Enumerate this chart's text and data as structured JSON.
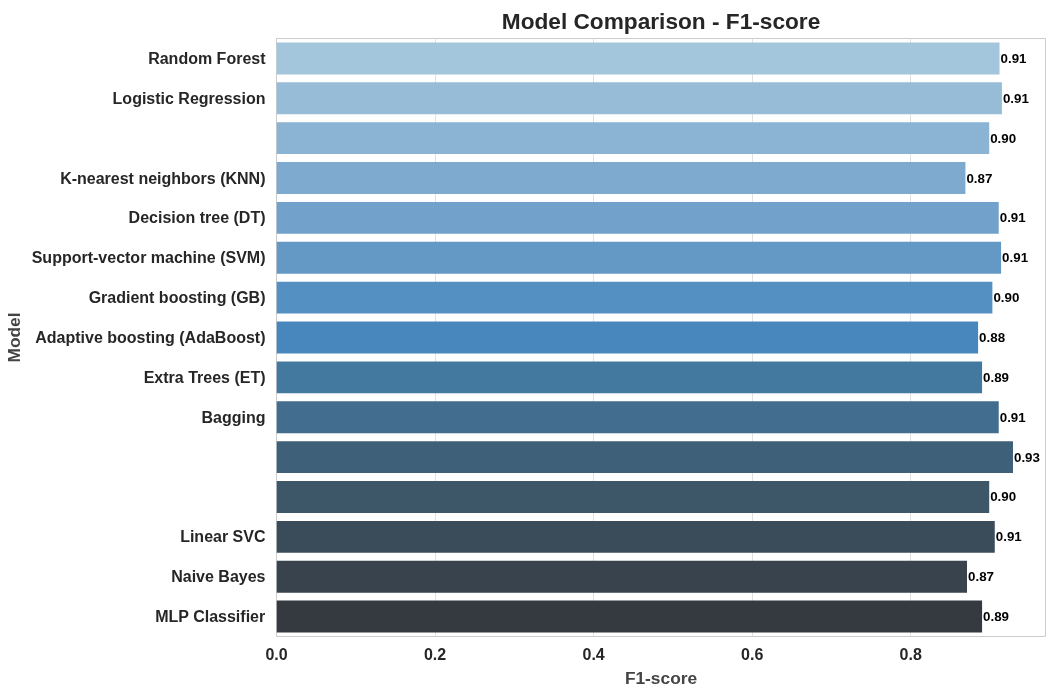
{
  "chart_data": {
    "type": "bar",
    "orientation": "horizontal",
    "title": "Model Comparison - F1-score",
    "xlabel": "F1-score",
    "ylabel": "Model",
    "categories": [
      "Random Forest",
      "Logistic Regression",
      null,
      "K-nearest neighbors (KNN)",
      "Decision tree (DT)",
      "Support-vector machine (SVM)",
      "Gradient boosting (GB)",
      "Adaptive boosting (AdaBoost)",
      "Extra Trees (ET)",
      "Bagging",
      null,
      null,
      "Linear SVC",
      "Naive Bayes",
      "MLP Classifier"
    ],
    "values": [
      0.912,
      0.915,
      0.899,
      0.869,
      0.911,
      0.914,
      0.903,
      0.885,
      0.89,
      0.911,
      0.929,
      0.899,
      0.906,
      0.871,
      0.89
    ],
    "value_labels": [
      "0.91",
      "0.91",
      "0.90",
      "0.87",
      "0.91",
      "0.91",
      "0.90",
      "0.88",
      "0.89",
      "0.91",
      "0.93",
      "0.90",
      "0.91",
      "0.87",
      "0.89"
    ],
    "colors": [
      "#a3c6dc",
      "#97bcd8",
      "#8bb3d3",
      "#7eaacf",
      "#72a1cb",
      "#6499c5",
      "#5590c2",
      "#4887bd",
      "#44799f",
      "#426d8e",
      "#3f6079",
      "#3d5668",
      "#3a4c5a",
      "#38434d",
      "#353a40"
    ],
    "xlim": [
      0,
      0.97
    ],
    "xticks": [
      {
        "value": 0,
        "label": "0.0"
      },
      {
        "value": 0.2,
        "label": "0.2"
      },
      {
        "value": 0.4,
        "label": "0.4"
      },
      {
        "value": 0.6,
        "label": "0.6"
      },
      {
        "value": 0.8,
        "label": "0.8"
      }
    ],
    "grid": "x"
  }
}
